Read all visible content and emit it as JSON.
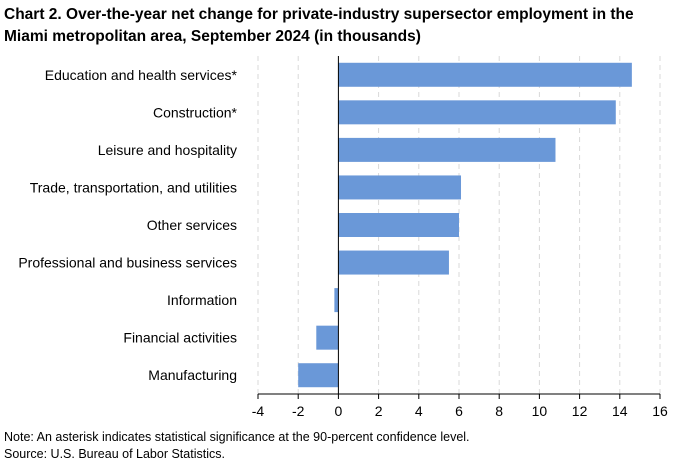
{
  "chart_data": {
    "type": "bar",
    "orientation": "horizontal",
    "title_line1": "Chart 2. Over-the-year net change for private-industry supersector employment in the",
    "title_line2": "Miami metropolitan area, September 2024 (in thousands)",
    "categories": [
      "Education and health services*",
      "Construction*",
      "Leisure and hospitality",
      "Trade, transportation, and utilities",
      "Other services",
      "Professional and business services",
      "Information",
      "Financial activities",
      "Manufacturing"
    ],
    "values": [
      14.6,
      13.8,
      10.8,
      6.1,
      6.0,
      5.5,
      -0.2,
      -1.1,
      -2.0
    ],
    "xlim": [
      -4,
      16
    ],
    "xticks": [
      "-4",
      "-2",
      "0",
      "2",
      "4",
      "6",
      "8",
      "10",
      "12",
      "14",
      "16"
    ],
    "grid": "vertical dashed",
    "bar_color": "#6a98d8"
  },
  "footer": {
    "note": "Note: An asterisk indicates statistical significance at the 90-percent confidence level.",
    "source": "Source: U.S. Bureau of Labor Statistics."
  }
}
